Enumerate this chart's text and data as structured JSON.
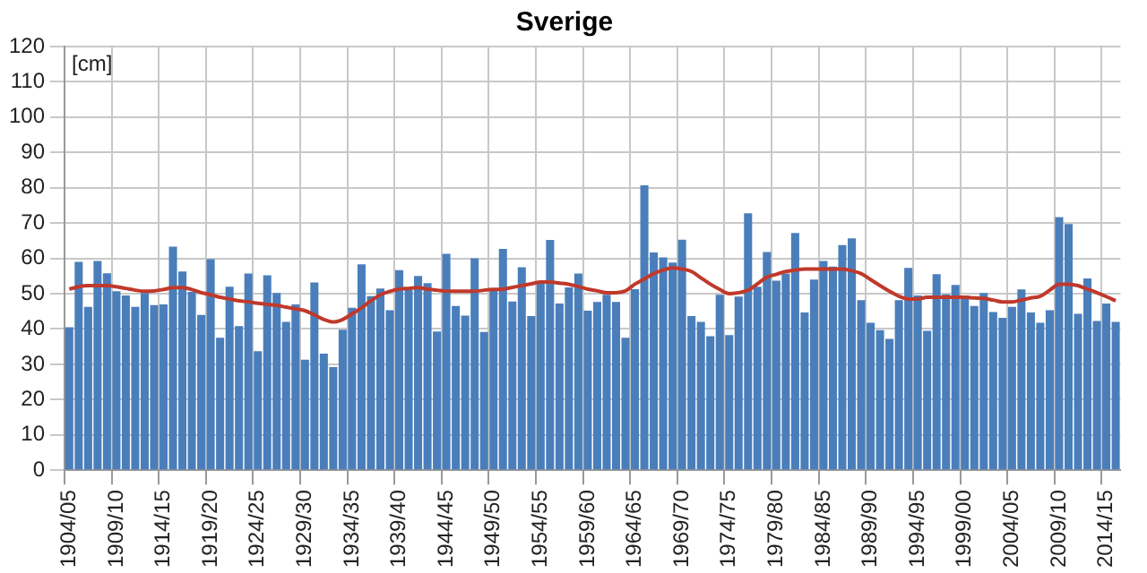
{
  "chart_data": {
    "type": "bar",
    "title": "Sverige",
    "annotations": [
      "[cm]"
    ],
    "categories": [
      "1904/05",
      null,
      null,
      null,
      null,
      "1909/10",
      null,
      null,
      null,
      null,
      "1914/15",
      null,
      null,
      null,
      null,
      "1919/20",
      null,
      null,
      null,
      null,
      "1924/25",
      null,
      null,
      null,
      null,
      "1929/30",
      null,
      null,
      null,
      null,
      "1934/35",
      null,
      null,
      null,
      null,
      "1939/40",
      null,
      null,
      null,
      null,
      "1944/45",
      null,
      null,
      null,
      null,
      "1949/50",
      null,
      null,
      null,
      null,
      "1954/55",
      null,
      null,
      null,
      null,
      "1959/60",
      null,
      null,
      null,
      null,
      "1964/65",
      null,
      null,
      null,
      null,
      "1969/70",
      null,
      null,
      null,
      null,
      "1974/75",
      null,
      null,
      null,
      null,
      "1979/80",
      null,
      null,
      null,
      null,
      "1984/85",
      null,
      null,
      null,
      null,
      "1989/90",
      null,
      null,
      null,
      null,
      "1994/95",
      null,
      null,
      null,
      null,
      "1999/00",
      null,
      null,
      null,
      null,
      "2004/05",
      null,
      null,
      null,
      null,
      "2009/10",
      null,
      null,
      null,
      null,
      "2014/15",
      null
    ],
    "series": [
      {
        "color": "#4a7ebb",
        "values": [
          40.5,
          59,
          46.3,
          59.3,
          55.8,
          50.7,
          49.5,
          46.3,
          50.2,
          46.8,
          47,
          63.3,
          56.3,
          50.5,
          44,
          59.8,
          37.5,
          52,
          40.8,
          55.7,
          33.7,
          55.2,
          50.2,
          42,
          47,
          31.3,
          53.2,
          33,
          29.2,
          39.8,
          46,
          58.3,
          49.3,
          51.5,
          45.3,
          56.7,
          51,
          55,
          53,
          39.3,
          61.3,
          46.5,
          43.8,
          60,
          39.2,
          51,
          62.7,
          47.8,
          57.5,
          43.7,
          53.5,
          65.2,
          47.2,
          51.8,
          55.7,
          45.2,
          47.7,
          49.7,
          47.7,
          37.5,
          51.3,
          80.7,
          61.7,
          60.3,
          58.8,
          65.3,
          43.7,
          42,
          38,
          49.7,
          38.3,
          49.2,
          72.8,
          52,
          61.8,
          53.7,
          55.7,
          67.2,
          44.7,
          54,
          59.3,
          57.7,
          63.8,
          65.7,
          48.2,
          41.8,
          39.7,
          37.2,
          48.2,
          57.3,
          49.5,
          39.5,
          55.5,
          49.8,
          52.5,
          49.5,
          46.5,
          50.2,
          44.8,
          43.2,
          46.3,
          51.2,
          44.7,
          41.8,
          45.3,
          71.7,
          69.7,
          44.3,
          54.3,
          42.3,
          47.2,
          42
        ]
      },
      {
        "type": "line",
        "color": "#c0392b",
        "marker": "none",
        "values": [
          51.3,
          52,
          52.3,
          52.3,
          52.3,
          52,
          51.5,
          51,
          50.7,
          50.8,
          51.2,
          51.7,
          51.7,
          51.2,
          50.3,
          49.7,
          49,
          48.5,
          48,
          47.7,
          47.3,
          47,
          46.7,
          46.2,
          45.7,
          45.2,
          44,
          42.7,
          42,
          42.7,
          44.3,
          46,
          48,
          49.7,
          50.7,
          51.3,
          51.5,
          51.7,
          51.3,
          51,
          50.7,
          50.7,
          50.7,
          50.7,
          51,
          51.2,
          51.3,
          51.8,
          52.3,
          52.8,
          53.3,
          53.3,
          53,
          52.7,
          52,
          51.3,
          50.8,
          50.3,
          50.3,
          50.8,
          52.7,
          54.2,
          55.7,
          56.7,
          57.3,
          57,
          56.3,
          54.5,
          52.7,
          51.2,
          50,
          50.3,
          51,
          52.8,
          54.7,
          55.5,
          56.3,
          56.7,
          57,
          57,
          57,
          57,
          57,
          56.5,
          55.7,
          54,
          52.3,
          50.7,
          49.3,
          48.5,
          48.5,
          49,
          49,
          49,
          49,
          49,
          48.8,
          48.7,
          48.2,
          47.7,
          47.7,
          48.2,
          48.8,
          49.3,
          51,
          52.7,
          52.7,
          52.3,
          51.3,
          50.3,
          49.2,
          48
        ]
      }
    ],
    "ylim": [
      0,
      120
    ],
    "yticks": [
      0,
      10,
      20,
      30,
      40,
      50,
      60,
      70,
      80,
      90,
      100,
      110,
      120
    ],
    "grid": true,
    "legend": false
  }
}
